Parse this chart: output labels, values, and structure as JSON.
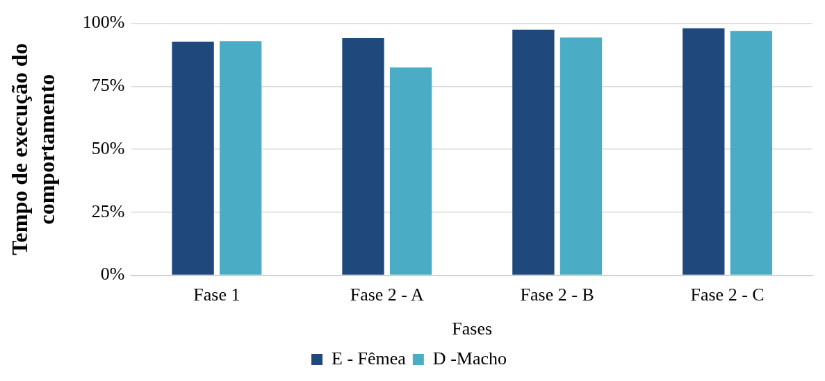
{
  "chart_data": {
    "type": "bar",
    "xlabel": "Fases",
    "ylabel": "Tempo de execução do comportamento",
    "categories": [
      "Fase 1",
      "Fase 2 - A",
      "Fase 2 - B",
      "Fase 2 - C"
    ],
    "series": [
      {
        "name": "E - Fêmea",
        "color": "#1f497d",
        "values": [
          92.7,
          94.1,
          97.5,
          98.0
        ]
      },
      {
        "name": "D -Macho",
        "color": "#4bacc6",
        "values": [
          92.9,
          82.5,
          94.4,
          96.9
        ]
      }
    ],
    "ylim": [
      0,
      100
    ],
    "yticks": [
      {
        "value": 0,
        "label": "0%"
      },
      {
        "value": 25,
        "label": "25%"
      },
      {
        "value": 50,
        "label": "50%"
      },
      {
        "value": 75,
        "label": "75%"
      },
      {
        "value": 100,
        "label": "100%"
      }
    ],
    "grid": "y",
    "legend": "bottom"
  }
}
